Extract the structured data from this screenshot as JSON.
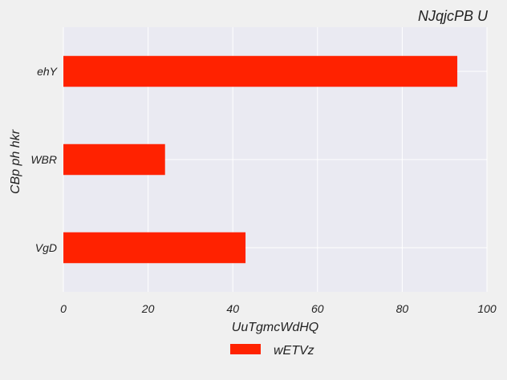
{
  "chart_data": {
    "type": "bar",
    "orientation": "horizontal",
    "title": "NJqjcPB U",
    "xlabel": "UuTgmcWdHQ",
    "ylabel": "CBp ph hkr",
    "categories": [
      "ehY",
      "WBR",
      "VgD"
    ],
    "series": [
      {
        "name": "wETVz",
        "values": [
          93,
          24,
          43
        ],
        "color": "#ff2200"
      }
    ],
    "xlim": [
      0,
      100
    ],
    "xticks": [
      "0",
      "20",
      "40",
      "60",
      "80",
      "100"
    ],
    "grid": true,
    "legend_position": "bottom-center",
    "colors": {
      "plot_bg": "#eaeaf2",
      "page_bg": "#f0f0f0",
      "grid": "#ffffff"
    }
  }
}
